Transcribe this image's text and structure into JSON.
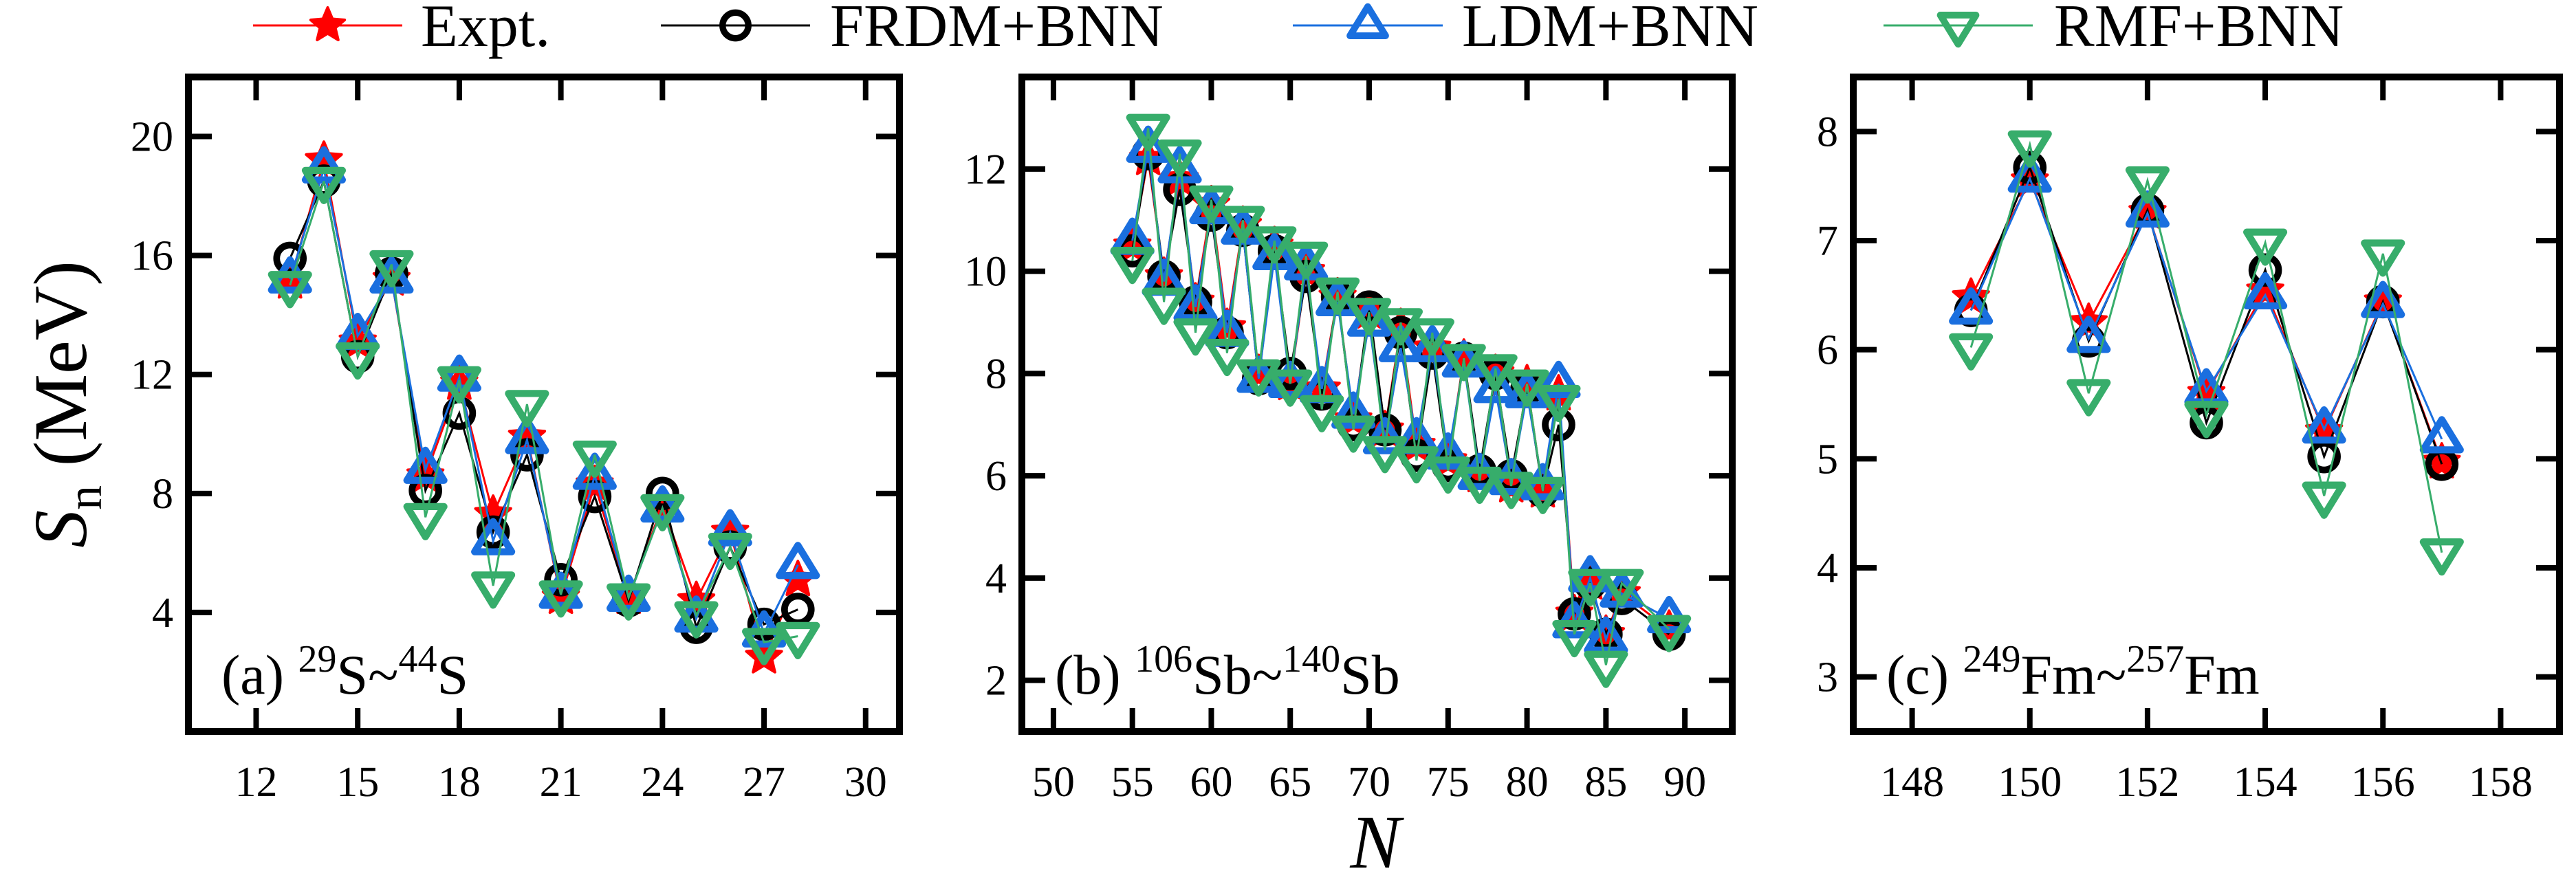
{
  "chart_data": [
    {
      "type": "line",
      "panel_label": {
        "prefix": "(a) ",
        "mass1": "29",
        "sym1": "S~",
        "mass2": "44",
        "sym2": "S"
      },
      "xlim": [
        10,
        31
      ],
      "ylim": [
        0,
        22
      ],
      "xticks": [
        12,
        15,
        18,
        21,
        24,
        27,
        30
      ],
      "yticks": [
        4,
        8,
        12,
        16,
        20
      ],
      "x": [
        13,
        14,
        15,
        16,
        17,
        18,
        19,
        20,
        21,
        22,
        23,
        24,
        25,
        26,
        27,
        28
      ],
      "series": [
        {
          "name": "Expt.",
          "values": [
            15.1,
            19.2,
            13.1,
            15.2,
            8.6,
            11.7,
            7.3,
            9.9,
            4.5,
            8.3,
            4.5,
            7.6,
            4.4,
            6.7,
            2.5,
            5.1
          ]
        },
        {
          "name": "FRDM+BNN",
          "values": [
            15.9,
            18.5,
            12.6,
            15.4,
            8.1,
            10.7,
            6.7,
            9.3,
            5.1,
            7.9,
            4.4,
            8.0,
            3.5,
            6.2,
            3.6,
            4.1
          ]
        },
        {
          "name": "LDM+BNN",
          "values": [
            15.2,
            18.9,
            13.3,
            15.2,
            8.8,
            11.9,
            6.4,
            9.8,
            4.6,
            8.6,
            4.5,
            7.5,
            3.8,
            6.7,
            3.3,
            5.6
          ]
        },
        {
          "name": "RMF+BNN",
          "values": [
            15.0,
            18.5,
            12.6,
            15.7,
            7.2,
            11.8,
            4.9,
            11.0,
            4.6,
            9.3,
            4.5,
            7.5,
            3.9,
            6.2,
            3.0,
            3.2
          ]
        }
      ]
    },
    {
      "type": "line",
      "panel_label": {
        "prefix": "(b) ",
        "mass1": "106",
        "sym1": "Sb~",
        "mass2": "140",
        "sym2": "Sb"
      },
      "xlim": [
        48,
        93
      ],
      "ylim": [
        1,
        13.8
      ],
      "xticks": [
        50,
        55,
        60,
        65,
        70,
        75,
        80,
        85,
        90
      ],
      "yticks": [
        2,
        4,
        6,
        8,
        10,
        12
      ],
      "x": [
        55,
        56,
        57,
        58,
        59,
        60,
        61,
        62,
        63,
        64,
        65,
        66,
        67,
        68,
        69,
        70,
        71,
        72,
        73,
        74,
        75,
        76,
        77,
        78,
        79,
        80,
        81,
        82,
        83,
        84,
        85,
        86,
        89
      ],
      "series": [
        {
          "name": "Expt.",
          "values": [
            10.5,
            12.2,
            9.9,
            11.8,
            9.4,
            11.3,
            8.9,
            10.9,
            8.0,
            10.5,
            7.8,
            10.0,
            7.7,
            9.5,
            7.1,
            9.2,
            6.9,
            8.9,
            6.6,
            8.5,
            6.3,
            8.3,
            6.0,
            8.0,
            5.8,
            7.8,
            5.7,
            7.6,
            3.3,
            3.9,
            2.9,
            3.7,
            3.0
          ]
        },
        {
          "name": "FRDM+BNN",
          "values": [
            10.4,
            12.3,
            9.9,
            11.6,
            9.4,
            11.1,
            8.8,
            10.8,
            7.9,
            10.4,
            8.0,
            9.9,
            7.6,
            9.5,
            7.0,
            9.3,
            6.9,
            8.8,
            6.4,
            8.4,
            6.2,
            8.3,
            6.1,
            8.0,
            6.0,
            7.7,
            5.7,
            7.0,
            3.3,
            3.9,
            2.9,
            3.6,
            2.9
          ]
        },
        {
          "name": "LDM+BNN",
          "values": [
            10.6,
            12.4,
            9.8,
            12.0,
            9.3,
            11.2,
            8.8,
            10.8,
            7.9,
            10.3,
            7.8,
            10.1,
            7.7,
            9.4,
            7.2,
            9.0,
            6.7,
            8.5,
            6.7,
            8.5,
            6.4,
            8.2,
            6.0,
            7.7,
            5.9,
            7.6,
            5.8,
            7.8,
            3.1,
            4.0,
            2.8,
            3.7,
            3.2
          ]
        },
        {
          "name": "RMF+BNN",
          "values": [
            10.2,
            12.8,
            9.4,
            12.3,
            8.8,
            11.4,
            8.4,
            11.0,
            8.0,
            10.6,
            7.8,
            10.3,
            7.3,
            9.6,
            6.9,
            9.2,
            6.5,
            9.0,
            6.3,
            8.8,
            6.1,
            8.3,
            5.9,
            8.1,
            5.8,
            7.8,
            5.7,
            7.5,
            2.9,
            3.9,
            2.3,
            3.9,
            3.0
          ]
        }
      ]
    },
    {
      "type": "line",
      "panel_label": {
        "prefix": "(c) ",
        "mass1": "249",
        "sym1": "Fm~",
        "mass2": "257",
        "sym2": "Fm"
      },
      "xlim": [
        147,
        159
      ],
      "ylim": [
        2.5,
        8.5
      ],
      "xticks": [
        148,
        150,
        152,
        154,
        156,
        158
      ],
      "yticks": [
        3,
        4,
        5,
        6,
        7,
        8
      ],
      "x": [
        149,
        150,
        151,
        152,
        153,
        154,
        155,
        156,
        157
      ],
      "series": [
        {
          "name": "Expt.",
          "values": [
            6.48,
            7.55,
            6.25,
            7.26,
            5.6,
            6.54,
            5.25,
            6.44,
            4.97
          ]
        },
        {
          "name": "FRDM+BNN",
          "values": [
            6.36,
            7.67,
            6.08,
            7.28,
            5.33,
            6.73,
            5.02,
            6.44,
            4.95
          ]
        },
        {
          "name": "LDM+BNN",
          "values": [
            6.36,
            7.57,
            6.1,
            7.25,
            5.62,
            6.5,
            5.27,
            6.42,
            5.18
          ]
        },
        {
          "name": "RMF+BNN",
          "values": [
            6.02,
            7.88,
            5.6,
            7.55,
            5.4,
            6.98,
            4.66,
            6.88,
            4.14
          ]
        }
      ]
    }
  ],
  "legend": {
    "placement": "top",
    "items": [
      {
        "label": "Expt.",
        "color": "#ff0000",
        "marker": "star"
      },
      {
        "label": "FRDM+BNN",
        "color": "#000000",
        "marker": "circle"
      },
      {
        "label": "LDM+BNN",
        "color": "#1a6fdf",
        "marker": "triangle-up"
      },
      {
        "label": "RMF+BNN",
        "color": "#37ad6b",
        "marker": "triangle-down"
      }
    ]
  },
  "ylabel": {
    "main": "S",
    "sub": "n",
    "unit": " (MeV)"
  },
  "xlabel": "N"
}
